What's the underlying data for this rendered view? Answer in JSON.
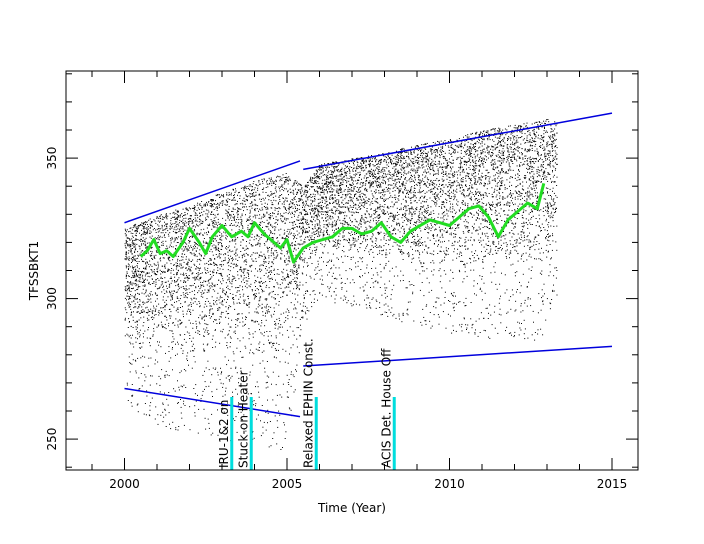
{
  "chart_data": {
    "type": "scatter",
    "xlabel": "Time (Year)",
    "ylabel": "TFSSBKT1",
    "xlim": [
      1998.2,
      2015.8
    ],
    "ylim": [
      239,
      381
    ],
    "x_ticks": [
      2000,
      2005,
      2010,
      2015
    ],
    "y_ticks": [
      250,
      300,
      350
    ],
    "colors": {
      "points": "#000000",
      "fit_lines": "#0000dd",
      "smooth": "#22dd22",
      "event_lines": "#00dddd",
      "axes": "#000000"
    },
    "scatter_envelope": [
      {
        "x": 2000.0,
        "upper": 325,
        "lower": 262
      },
      {
        "x": 2001.0,
        "upper": 330,
        "lower": 255
      },
      {
        "x": 2002.0,
        "upper": 333,
        "lower": 252
      },
      {
        "x": 2003.0,
        "upper": 338,
        "lower": 250
      },
      {
        "x": 2004.0,
        "upper": 342,
        "lower": 248
      },
      {
        "x": 2005.0,
        "upper": 345,
        "lower": 246
      },
      {
        "x": 2005.5,
        "upper": 340,
        "lower": 290
      },
      {
        "x": 2006.0,
        "upper": 348,
        "lower": 300
      },
      {
        "x": 2007.0,
        "upper": 350,
        "lower": 297
      },
      {
        "x": 2008.0,
        "upper": 352,
        "lower": 294
      },
      {
        "x": 2009.0,
        "upper": 355,
        "lower": 290
      },
      {
        "x": 2010.0,
        "upper": 357,
        "lower": 288
      },
      {
        "x": 2011.0,
        "upper": 360,
        "lower": 286
      },
      {
        "x": 2012.0,
        "upper": 362,
        "lower": 285
      },
      {
        "x": 2013.0,
        "upper": 364,
        "lower": 285
      },
      {
        "x": 2013.3,
        "upper": 363,
        "lower": 300
      }
    ],
    "fit_lines": [
      {
        "x": [
          2000.0,
          2005.4
        ],
        "y": [
          327,
          349
        ]
      },
      {
        "x": [
          2000.0,
          2005.4
        ],
        "y": [
          268,
          258
        ]
      },
      {
        "x": [
          2005.5,
          2015.0
        ],
        "y": [
          346,
          366
        ]
      },
      {
        "x": [
          2005.5,
          2015.0
        ],
        "y": [
          276,
          283
        ]
      }
    ],
    "smooth_curve": {
      "x": [
        2000.5,
        2000.7,
        2000.9,
        2001.1,
        2001.3,
        2001.5,
        2001.8,
        2002.0,
        2002.3,
        2002.5,
        2002.7,
        2003.0,
        2003.3,
        2003.6,
        2003.8,
        2004.0,
        2004.3,
        2004.6,
        2004.8,
        2005.0,
        2005.2,
        2005.5,
        2005.8,
        2006.1,
        2006.4,
        2006.7,
        2007.0,
        2007.3,
        2007.6,
        2007.9,
        2008.2,
        2008.5,
        2008.8,
        2009.1,
        2009.4,
        2009.7,
        2010.0,
        2010.3,
        2010.6,
        2010.9,
        2011.2,
        2011.5,
        2011.8,
        2012.1,
        2012.4,
        2012.7,
        2012.9
      ],
      "y": [
        315,
        317,
        321,
        316,
        317,
        315,
        320,
        325,
        320,
        316,
        322,
        326,
        322,
        324,
        322,
        327,
        323,
        320,
        318,
        321,
        313,
        318,
        320,
        321,
        322,
        325,
        325,
        323,
        324,
        327,
        322,
        320,
        324,
        326,
        328,
        327,
        326,
        329,
        332,
        333,
        329,
        322,
        328,
        331,
        334,
        332,
        341
      ]
    },
    "event_lines": [
      {
        "label": "IRU-1&2 on",
        "x": 2003.3
      },
      {
        "label": "Stuck-on Heater",
        "x": 2003.9
      },
      {
        "label": "Relaxed EPHIN Const.",
        "x": 2005.9
      },
      {
        "label": "ACIS Det. House Off",
        "x": 2008.3
      }
    ]
  }
}
